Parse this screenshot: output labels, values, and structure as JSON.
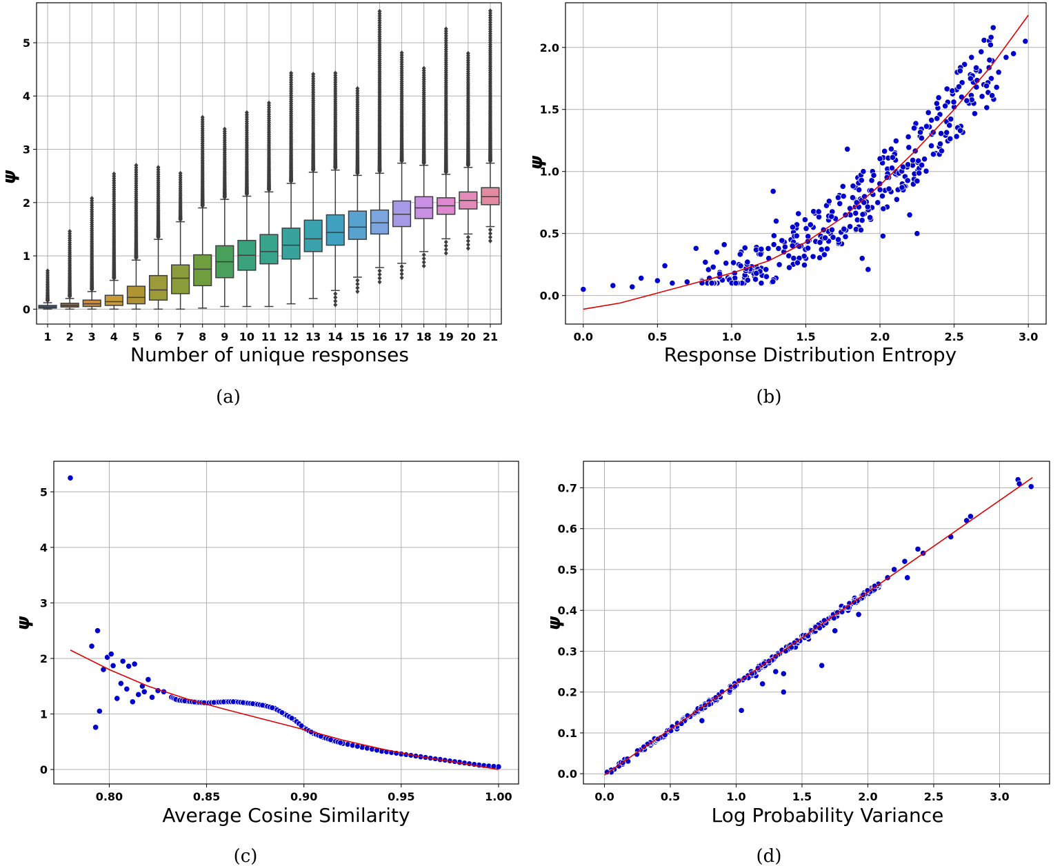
{
  "chart_data": [
    {
      "id": "a",
      "type": "box",
      "caption": "(a)",
      "xlabel": "Number of unique responses",
      "ylabel": "ψ",
      "categories": [
        "1",
        "2",
        "3",
        "4",
        "5",
        "6",
        "7",
        "8",
        "9",
        "10",
        "11",
        "12",
        "13",
        "14",
        "15",
        "16",
        "17",
        "18",
        "19",
        "20",
        "21"
      ],
      "ylim": [
        -0.28,
        5.75
      ],
      "yticks": [
        0,
        1,
        2,
        3,
        4,
        5
      ],
      "boxes": [
        {
          "q1": 0.02,
          "median": 0.04,
          "q3": 0.07,
          "lo": 0.0,
          "hi": 0.12,
          "fmax": 0.72,
          "color": "#3b6a9a"
        },
        {
          "q1": 0.04,
          "median": 0.07,
          "q3": 0.11,
          "lo": 0.0,
          "hi": 0.2,
          "fmax": 1.46,
          "color": "#9a6a3c"
        },
        {
          "q1": 0.05,
          "median": 0.1,
          "q3": 0.17,
          "lo": 0.0,
          "hi": 0.33,
          "fmax": 2.08,
          "color": "#d08a3a"
        },
        {
          "q1": 0.07,
          "median": 0.14,
          "q3": 0.26,
          "lo": 0.0,
          "hi": 0.54,
          "fmax": 2.54,
          "color": "#c99a36"
        },
        {
          "q1": 0.1,
          "median": 0.22,
          "q3": 0.43,
          "lo": 0.0,
          "hi": 0.92,
          "fmax": 2.7,
          "color": "#b09434"
        },
        {
          "q1": 0.17,
          "median": 0.36,
          "q3": 0.63,
          "lo": 0.0,
          "hi": 1.31,
          "fmax": 2.66,
          "color": "#9d9a3a"
        },
        {
          "q1": 0.29,
          "median": 0.58,
          "q3": 0.83,
          "lo": 0.0,
          "hi": 1.64,
          "fmax": 2.55,
          "color": "#8b9c3b"
        },
        {
          "q1": 0.44,
          "median": 0.75,
          "q3": 1.02,
          "lo": 0.02,
          "hi": 1.9,
          "fmax": 3.6,
          "color": "#6f9e3f"
        },
        {
          "q1": 0.59,
          "median": 0.89,
          "q3": 1.19,
          "lo": 0.05,
          "hi": 2.06,
          "fmax": 3.38,
          "color": "#48a05a"
        },
        {
          "q1": 0.73,
          "median": 1.01,
          "q3": 1.29,
          "lo": 0.05,
          "hi": 2.12,
          "fmax": 3.69,
          "color": "#3aa27a"
        },
        {
          "q1": 0.85,
          "median": 1.08,
          "q3": 1.4,
          "lo": 0.05,
          "hi": 2.2,
          "fmax": 3.87,
          "color": "#39a48c"
        },
        {
          "q1": 0.94,
          "median": 1.2,
          "q3": 1.52,
          "lo": 0.1,
          "hi": 2.36,
          "fmax": 4.43,
          "color": "#38a39c"
        },
        {
          "q1": 1.08,
          "median": 1.32,
          "q3": 1.67,
          "lo": 0.2,
          "hi": 2.57,
          "fmax": 4.41,
          "color": "#3aa2ad"
        },
        {
          "q1": 1.2,
          "median": 1.44,
          "q3": 1.77,
          "lo": 0.35,
          "hi": 2.61,
          "fmax": 4.43,
          "color": "#3fa0bf"
        },
        {
          "q1": 1.31,
          "median": 1.54,
          "q3": 1.84,
          "lo": 0.6,
          "hi": 2.51,
          "fmax": 4.14,
          "color": "#58a2d0"
        },
        {
          "q1": 1.41,
          "median": 1.62,
          "q3": 1.86,
          "lo": 0.78,
          "hi": 2.55,
          "fmax": 5.59,
          "color": "#7aa5df"
        },
        {
          "q1": 1.55,
          "median": 1.78,
          "q3": 2.03,
          "lo": 0.86,
          "hi": 2.74,
          "fmax": 4.81,
          "color": "#a69ae6"
        },
        {
          "q1": 1.7,
          "median": 1.9,
          "q3": 2.11,
          "lo": 1.08,
          "hi": 2.7,
          "fmax": 4.52,
          "color": "#c890e2"
        },
        {
          "q1": 1.78,
          "median": 1.94,
          "q3": 2.09,
          "lo": 1.32,
          "hi": 2.53,
          "fmax": 5.26,
          "color": "#dd88cf"
        },
        {
          "q1": 1.88,
          "median": 2.04,
          "q3": 2.2,
          "lo": 1.41,
          "hi": 2.66,
          "fmax": 4.8,
          "color": "#e28ab9"
        },
        {
          "q1": 1.96,
          "median": 2.11,
          "q3": 2.28,
          "lo": 1.55,
          "hi": 2.74,
          "fmax": 5.6,
          "color": "#e38aa3"
        }
      ]
    },
    {
      "id": "b",
      "type": "scatter",
      "caption": "(b)",
      "xlabel": "Response Distribution Entropy",
      "ylabel": "ψ",
      "xlim": [
        -0.12,
        3.12
      ],
      "ylim": [
        -0.23,
        2.36
      ],
      "xticks": [
        0.0,
        0.5,
        1.0,
        1.5,
        2.0,
        2.5,
        3.0
      ],
      "yticks": [
        0.0,
        0.5,
        1.0,
        1.5,
        2.0
      ],
      "fit": [
        [
          0.0,
          -0.11
        ],
        [
          0.25,
          -0.06
        ],
        [
          0.5,
          0.02
        ],
        [
          0.75,
          0.1
        ],
        [
          1.0,
          0.18
        ],
        [
          1.25,
          0.28
        ],
        [
          1.5,
          0.43
        ],
        [
          1.75,
          0.63
        ],
        [
          2.0,
          0.89
        ],
        [
          2.25,
          1.18
        ],
        [
          2.5,
          1.5
        ],
        [
          2.75,
          1.85
        ],
        [
          3.0,
          2.26
        ]
      ],
      "points": [
        [
          0.0,
          0.05
        ],
        [
          0.2,
          0.08
        ],
        [
          0.33,
          0.07
        ],
        [
          0.39,
          0.14
        ],
        [
          0.5,
          0.12
        ],
        [
          0.55,
          0.24
        ],
        [
          0.6,
          0.1
        ],
        [
          0.7,
          0.11
        ],
        [
          0.8,
          0.12
        ],
        [
          0.76,
          0.38
        ],
        [
          0.85,
          0.14
        ],
        [
          0.9,
          0.35
        ],
        [
          0.95,
          0.41
        ],
        [
          1.02,
          0.18
        ],
        [
          1.05,
          0.25
        ],
        [
          1.1,
          0.15
        ],
        [
          1.15,
          0.2
        ],
        [
          1.2,
          0.22
        ],
        [
          1.25,
          0.3
        ],
        [
          1.28,
          0.84
        ],
        [
          1.3,
          0.6
        ],
        [
          1.35,
          0.35
        ],
        [
          1.4,
          0.45
        ],
        [
          1.45,
          0.66
        ],
        [
          1.5,
          0.3
        ],
        [
          1.55,
          0.55
        ],
        [
          1.6,
          0.48
        ],
        [
          1.65,
          0.74
        ],
        [
          1.7,
          0.62
        ],
        [
          1.72,
          0.42
        ],
        [
          1.75,
          0.88
        ],
        [
          1.78,
          1.18
        ],
        [
          1.8,
          0.65
        ],
        [
          1.85,
          0.95
        ],
        [
          1.88,
          0.3
        ],
        [
          1.9,
          0.8
        ],
        [
          1.92,
          0.21
        ],
        [
          1.95,
          1.0
        ],
        [
          2.0,
          0.85
        ],
        [
          2.02,
          0.48
        ],
        [
          2.05,
          1.02
        ],
        [
          2.1,
          1.15
        ],
        [
          2.15,
          0.9
        ],
        [
          2.2,
          0.65
        ],
        [
          2.22,
          1.05
        ],
        [
          2.25,
          0.5
        ],
        [
          2.3,
          1.1
        ],
        [
          2.35,
          1.3
        ],
        [
          2.4,
          1.2
        ],
        [
          2.45,
          1.4
        ],
        [
          2.5,
          1.52
        ],
        [
          2.55,
          1.6
        ],
        [
          2.6,
          1.55
        ],
        [
          2.65,
          1.68
        ],
        [
          2.7,
          1.7
        ],
        [
          2.75,
          1.75
        ],
        [
          2.8,
          1.8
        ],
        [
          2.85,
          1.92
        ],
        [
          2.9,
          1.95
        ],
        [
          2.98,
          2.05
        ]
      ]
    },
    {
      "id": "c",
      "type": "scatter",
      "caption": "(c)",
      "xlabel": "Average Cosine Similarity",
      "ylabel": "ψ",
      "xlim": [
        0.7715,
        1.0103
      ],
      "ylim": [
        -0.26,
        5.55
      ],
      "xticks": [
        0.8,
        0.85,
        0.9,
        0.95,
        1.0
      ],
      "yticks": [
        0,
        1,
        2,
        3,
        4,
        5
      ],
      "fit": [
        [
          0.78,
          2.15
        ],
        [
          0.8,
          1.8
        ],
        [
          0.82,
          1.5
        ],
        [
          0.84,
          1.27
        ],
        [
          0.86,
          1.08
        ],
        [
          0.88,
          0.9
        ],
        [
          0.9,
          0.72
        ],
        [
          0.92,
          0.53
        ],
        [
          0.94,
          0.37
        ],
        [
          0.96,
          0.23
        ],
        [
          0.98,
          0.12
        ],
        [
          1.0,
          0.0
        ]
      ],
      "points": [
        [
          0.78,
          5.25
        ],
        [
          0.791,
          2.22
        ],
        [
          0.794,
          2.5
        ],
        [
          0.793,
          0.76
        ],
        [
          0.795,
          1.05
        ],
        [
          0.797,
          1.8
        ],
        [
          0.799,
          2.02
        ],
        [
          0.801,
          2.08
        ],
        [
          0.802,
          1.87
        ],
        [
          0.804,
          1.28
        ],
        [
          0.806,
          1.55
        ],
        [
          0.807,
          1.95
        ],
        [
          0.809,
          1.45
        ],
        [
          0.81,
          1.86
        ],
        [
          0.812,
          1.22
        ],
        [
          0.813,
          1.9
        ],
        [
          0.815,
          1.35
        ],
        [
          0.817,
          1.5
        ],
        [
          0.818,
          1.4
        ],
        [
          0.82,
          1.62
        ],
        [
          0.822,
          1.3
        ],
        [
          0.825,
          1.42
        ],
        [
          0.828,
          1.4
        ],
        [
          0.832,
          1.3
        ],
        [
          0.835,
          1.25
        ],
        [
          0.84,
          1.23
        ],
        [
          0.845,
          1.21
        ],
        [
          0.85,
          1.2
        ],
        [
          0.855,
          1.21
        ],
        [
          0.86,
          1.22
        ],
        [
          0.865,
          1.22
        ],
        [
          0.87,
          1.2
        ],
        [
          0.875,
          1.18
        ],
        [
          0.88,
          1.15
        ],
        [
          0.885,
          1.1
        ],
        [
          0.89,
          1.0
        ],
        [
          0.895,
          0.9
        ],
        [
          0.9,
          0.75
        ],
        [
          0.905,
          0.65
        ],
        [
          0.91,
          0.58
        ],
        [
          0.915,
          0.52
        ],
        [
          0.92,
          0.47
        ],
        [
          0.93,
          0.4
        ],
        [
          0.94,
          0.33
        ],
        [
          0.95,
          0.28
        ],
        [
          0.96,
          0.23
        ],
        [
          0.97,
          0.18
        ],
        [
          0.98,
          0.13
        ],
        [
          0.99,
          0.08
        ],
        [
          1.0,
          0.05
        ]
      ]
    },
    {
      "id": "d",
      "type": "scatter",
      "caption": "(d)",
      "xlabel": "Log Probability Variance",
      "ylabel": "ψ",
      "xlim": [
        -0.16,
        3.38
      ],
      "ylim": [
        -0.025,
        0.765
      ],
      "xticks": [
        0.0,
        0.5,
        1.0,
        1.5,
        2.0,
        2.5,
        3.0
      ],
      "yticks": [
        0.0,
        0.1,
        0.2,
        0.3,
        0.4,
        0.5,
        0.6,
        0.7
      ],
      "fit": [
        [
          0.0,
          -0.003
        ],
        [
          3.25,
          0.725
        ]
      ],
      "points": [
        [
          0.05,
          0.01
        ],
        [
          0.15,
          0.03
        ],
        [
          0.25,
          0.05
        ],
        [
          0.35,
          0.07
        ],
        [
          0.45,
          0.09
        ],
        [
          0.55,
          0.11
        ],
        [
          0.65,
          0.14
        ],
        [
          0.75,
          0.16
        ],
        [
          0.74,
          0.13
        ],
        [
          0.85,
          0.18
        ],
        [
          0.95,
          0.2
        ],
        [
          1.04,
          0.155
        ],
        [
          1.05,
          0.23
        ],
        [
          1.15,
          0.24
        ],
        [
          1.2,
          0.22
        ],
        [
          1.25,
          0.27
        ],
        [
          1.3,
          0.25
        ],
        [
          1.35,
          0.3
        ],
        [
          1.36,
          0.2
        ],
        [
          1.36,
          0.245
        ],
        [
          1.45,
          0.31
        ],
        [
          1.55,
          0.33
        ],
        [
          1.6,
          0.36
        ],
        [
          1.65,
          0.265
        ],
        [
          1.7,
          0.38
        ],
        [
          1.75,
          0.35
        ],
        [
          1.8,
          0.41
        ],
        [
          1.85,
          0.4
        ],
        [
          1.9,
          0.43
        ],
        [
          1.93,
          0.39
        ],
        [
          2.0,
          0.45
        ],
        [
          2.05,
          0.46
        ],
        [
          2.15,
          0.48
        ],
        [
          2.2,
          0.5
        ],
        [
          2.28,
          0.52
        ],
        [
          2.3,
          0.48
        ],
        [
          2.38,
          0.55
        ],
        [
          2.42,
          0.54
        ],
        [
          2.63,
          0.58
        ],
        [
          2.75,
          0.62
        ],
        [
          2.78,
          0.63
        ],
        [
          3.14,
          0.72
        ],
        [
          3.15,
          0.71
        ],
        [
          3.24,
          0.703
        ]
      ]
    }
  ]
}
